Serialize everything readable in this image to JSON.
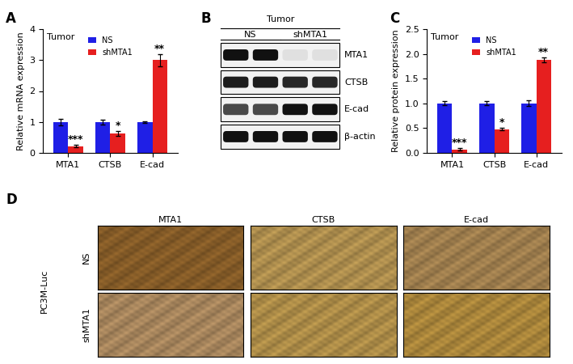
{
  "chart_data": [
    {
      "type": "bar",
      "panel": "A",
      "title": "Tumor",
      "y_label": "Relative mRNA expression",
      "categories": [
        "MTA1",
        "CTSB",
        "E-cad"
      ],
      "series": [
        {
          "name": "NS",
          "color": "#1f1fe6",
          "values": [
            1.0,
            1.0,
            1.0
          ],
          "errors": [
            0.1,
            0.08,
            0.03
          ]
        },
        {
          "name": "shMTA1",
          "color": "#e61f1f",
          "values": [
            0.22,
            0.62,
            3.0
          ],
          "errors": [
            0.05,
            0.08,
            0.2
          ],
          "annotations": [
            "***",
            "*",
            "**"
          ]
        }
      ],
      "ylim": [
        0,
        4
      ],
      "yticks": [
        0,
        1,
        2,
        3,
        4
      ],
      "legend": "upper center"
    },
    {
      "type": "bar",
      "panel": "C",
      "title": "Tumor",
      "y_label": "Relative protein expression",
      "categories": [
        "MTA1",
        "CTSB",
        "E-cad"
      ],
      "series": [
        {
          "name": "NS",
          "color": "#1f1fe6",
          "values": [
            1.0,
            1.0,
            1.0
          ],
          "errors": [
            0.04,
            0.04,
            0.06
          ]
        },
        {
          "name": "shMTA1",
          "color": "#e61f1f",
          "values": [
            0.07,
            0.48,
            1.88
          ],
          "errors": [
            0.02,
            0.02,
            0.05
          ],
          "annotations": [
            "***",
            "*",
            "**"
          ]
        }
      ],
      "ylim": [
        0,
        2.5
      ],
      "yticks": [
        {
          "value": 0,
          "label": "0.0"
        },
        0.5,
        {
          "value": 1,
          "label": "1.0"
        },
        1.5,
        {
          "value": 2,
          "label": "2.0"
        },
        2.5
      ],
      "legend": "upper center"
    }
  ],
  "blot": {
    "panel": "B",
    "header": "Tumor",
    "groups": [
      "NS",
      "shMTA1"
    ],
    "lanes_per_group": 2,
    "rows": [
      {
        "label": "MTA1",
        "band_intensity": [
          1.0,
          1.0,
          0.08,
          0.08
        ]
      },
      {
        "label": "CTSB",
        "band_intensity": [
          0.95,
          0.95,
          0.9,
          0.9
        ]
      },
      {
        "label": "E-cad",
        "band_intensity": [
          0.75,
          0.75,
          1.0,
          1.0
        ]
      },
      {
        "label": "β-actin",
        "band_intensity": [
          1.0,
          1.0,
          1.0,
          1.0
        ]
      }
    ]
  },
  "ihc": {
    "panel": "D",
    "side_label": "PC3M-Luc",
    "columns": [
      "MTA1",
      "CTSB",
      "E-cad"
    ],
    "rows": [
      {
        "label": "NS",
        "colors": [
          "#9a6a2e",
          "#c9a45a",
          "#b8925a"
        ]
      },
      {
        "label": "shMTA1",
        "colors": [
          "#c19a6b",
          "#c8a253",
          "#c49a44"
        ]
      }
    ]
  }
}
